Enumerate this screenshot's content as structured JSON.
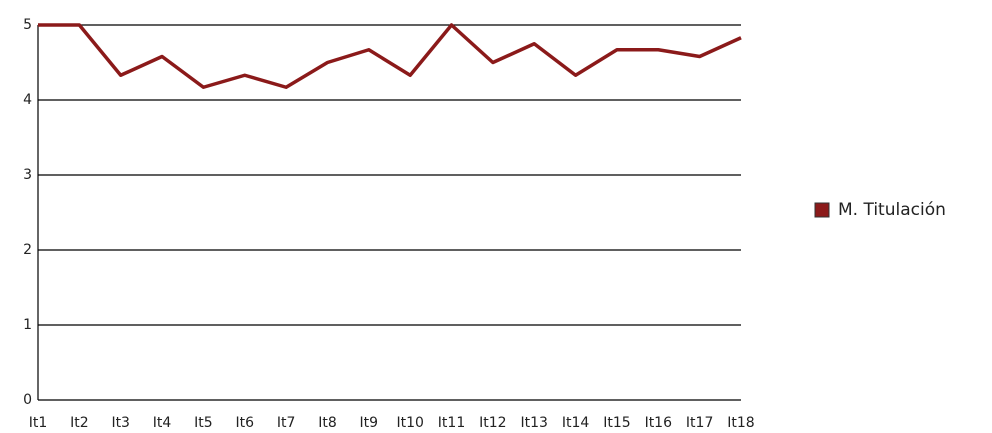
{
  "chart_data": {
    "type": "line",
    "categories": [
      "It1",
      "It2",
      "It3",
      "It4",
      "It5",
      "It6",
      "It7",
      "It8",
      "It9",
      "It10",
      "It11",
      "It12",
      "It13",
      "It14",
      "It15",
      "It16",
      "It17",
      "It18"
    ],
    "series": [
      {
        "name": "M. Titulación",
        "color": "#8b1a1a",
        "values": [
          5,
          5,
          4.33,
          4.58,
          4.17,
          4.33,
          4.17,
          4.5,
          4.67,
          4.33,
          5,
          4.5,
          4.75,
          4.33,
          4.67,
          4.67,
          4.58,
          4.83
        ]
      }
    ],
    "ylim": [
      0,
      5
    ],
    "yticks": [
      0,
      1,
      2,
      3,
      4,
      5
    ],
    "grid": true,
    "legend": "right"
  }
}
